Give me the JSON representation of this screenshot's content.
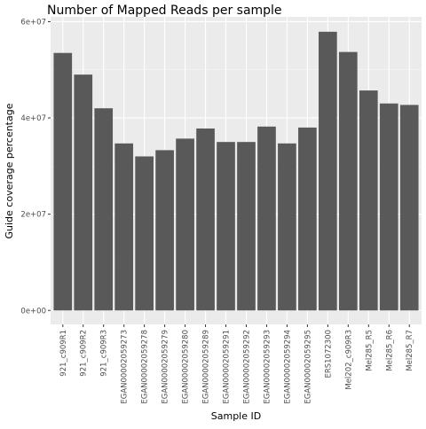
{
  "chart_data": {
    "type": "bar",
    "title": "Number of Mapped Reads per sample",
    "xlabel": "Sample ID",
    "ylabel": "Guide coverage percentage",
    "ylim": [
      0,
      60000000
    ],
    "y_ticks": [
      0,
      20000000,
      40000000,
      60000000
    ],
    "y_tick_labels": [
      "0e+00",
      "2e+07",
      "4e+07",
      "6e+07"
    ],
    "grid": true,
    "legend": "none",
    "categories": [
      "921_c909R1",
      "921_c909R2",
      "921_c909R3",
      "EGAN00002059273",
      "EGAN00002059278",
      "EGAN00002059279",
      "EGAN00002059280",
      "EGAN00002059289",
      "EGAN00002059291",
      "EGAN00002059292",
      "EGAN00002059293",
      "EGAN00002059294",
      "EGAN00002059295",
      "ERS1072300",
      "Mel202_c909R3",
      "Mel285_R5",
      "Mel285_R6",
      "Mel285_R7"
    ],
    "values": [
      53500000,
      49000000,
      42000000,
      34700000,
      32000000,
      33300000,
      35700000,
      37800000,
      35000000,
      35000000,
      38200000,
      34700000,
      38000000,
      57900000,
      53700000,
      45700000,
      43000000,
      42700000
    ],
    "colors": {
      "bar": "#595959",
      "panel": "#ebebeb",
      "grid_major": "#ffffff",
      "grid_minor": "#f5f5f5",
      "text": "#000000",
      "tick_text": "#4d4d4d",
      "tick": "#333333"
    }
  }
}
